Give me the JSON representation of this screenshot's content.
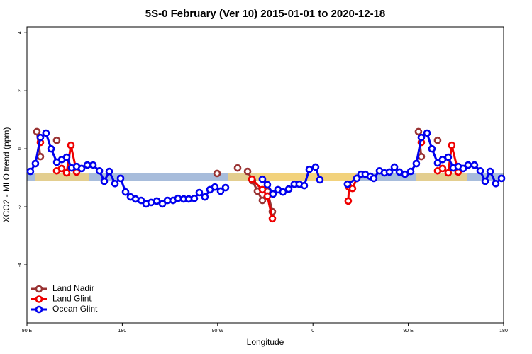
{
  "chart_data": {
    "type": "line",
    "title": "5S-0 February (Ver 10)   2015-01-01 to 2020-12-18",
    "xlabel": "Longitude",
    "ylabel": "XCO2 - MLO trend (ppm)",
    "xlim": [
      90,
      540
    ],
    "ylim": [
      -6,
      4.2
    ],
    "xticks": [
      {
        "value": 90,
        "label": "90 E"
      },
      {
        "value": 180,
        "label": "180"
      },
      {
        "value": 270,
        "label": "90 W"
      },
      {
        "value": 360,
        "label": "0"
      },
      {
        "value": 450,
        "label": "90 E"
      },
      {
        "value": 540,
        "label": "180"
      }
    ],
    "yticks": [
      4,
      2,
      0,
      -2,
      -4
    ],
    "legend": "bottom-left",
    "series": [
      {
        "name": "Land Nadir",
        "color": "#993333",
        "x": [
          99.4,
          102.7,
          null,
          118.1,
          null,
          269.5,
          null,
          288.9,
          null,
          298.3,
          302.9,
          307.6,
          312.3,
          317,
          321.7,
          null,
          459.6,
          462.3,
          null,
          477.7
        ],
        "values": [
          0.59,
          -0.27,
          null,
          0.29,
          null,
          -0.85,
          null,
          -0.66,
          null,
          -0.78,
          -1.1,
          -1.46,
          -1.78,
          -1.46,
          -2.17,
          null,
          0.59,
          -0.27,
          null,
          0.29
        ]
      },
      {
        "name": "Land Glint",
        "color": "#ee0000",
        "x": [
          102.7,
          null,
          118.1,
          122.8,
          127.5,
          131.5,
          136.9,
          null,
          302.3,
          312.3,
          317,
          321.7,
          null,
          393.3,
          394,
          397.3,
          401.4,
          null,
          462.3,
          null,
          477.7,
          482.4,
          487.7,
          491,
          497.1
        ],
        "values": [
          0.22,
          null,
          -0.76,
          -0.68,
          -0.83,
          0.12,
          -0.8,
          null,
          -1.05,
          -1.41,
          -1.63,
          -2.41,
          null,
          -1.8,
          -1.32,
          -1.37,
          -1.02,
          null,
          0.22,
          null,
          -0.76,
          -0.68,
          -0.83,
          0.12,
          -0.8
        ]
      },
      {
        "name": "Ocean Glint",
        "color": "#0000ee",
        "x": [
          93.3,
          98,
          102.7,
          108,
          112.8,
          118.2,
          122.9,
          127.5,
          132.2,
          136.9,
          141.6,
          147,
          152.3,
          158.4,
          163,
          167.7,
          173.1,
          178.4,
          183.1,
          187.8,
          192.5,
          197.8,
          202.5,
          207.2,
          212.6,
          217.9,
          222.6,
          228,
          232.6,
          238,
          242.7,
          248,
          252.7,
          258,
          262.8,
          267.4,
          272.8,
          277.5,
          null,
          312.3,
          317,
          322.3,
          327,
          331.7,
          337.1,
          342.4,
          347.1,
          351.8,
          356.5,
          362.5,
          366.5,
          null,
          392.6,
          401.4,
          405.4,
          409.4,
          414.1,
          417.4,
          422.8,
          427.5,
          432.2,
          436.9,
          441.6,
          446.9,
          452.3,
          457.6,
          462.3,
          467.7,
          472.3,
          477.7,
          482.4,
          487.7,
          492.4,
          497.1,
          501.8,
          506.5,
          512.5,
          517.9,
          522.6,
          527.3,
          532.6,
          538
        ],
        "values": [
          -0.78,
          -0.51,
          0.39,
          0.54,
          0,
          -0.46,
          -0.37,
          -0.29,
          -0.66,
          -0.61,
          -0.68,
          -0.56,
          -0.56,
          -0.76,
          -1.12,
          -0.78,
          -1.2,
          -1.02,
          -1.49,
          -1.66,
          -1.73,
          -1.78,
          -1.9,
          -1.85,
          -1.8,
          -1.9,
          -1.78,
          -1.78,
          -1.71,
          -1.73,
          -1.73,
          -1.71,
          -1.51,
          -1.66,
          -1.41,
          -1.32,
          -1.46,
          -1.34,
          null,
          -1.05,
          -1.24,
          -1.56,
          -1.41,
          -1.49,
          -1.39,
          -1.22,
          -1.22,
          -1.27,
          -0.71,
          -0.63,
          -1.07,
          null,
          -1.22,
          -1.02,
          -0.88,
          -0.88,
          -0.95,
          -1.02,
          -0.76,
          -0.83,
          -0.8,
          -0.63,
          -0.8,
          -0.88,
          -0.78,
          -0.51,
          0.39,
          0.54,
          0,
          -0.49,
          -0.37,
          -0.29,
          -0.66,
          -0.61,
          -0.68,
          -0.56,
          -0.56,
          -0.76,
          -1.12,
          -0.78,
          -1.2,
          -1.02
        ]
      }
    ]
  }
}
